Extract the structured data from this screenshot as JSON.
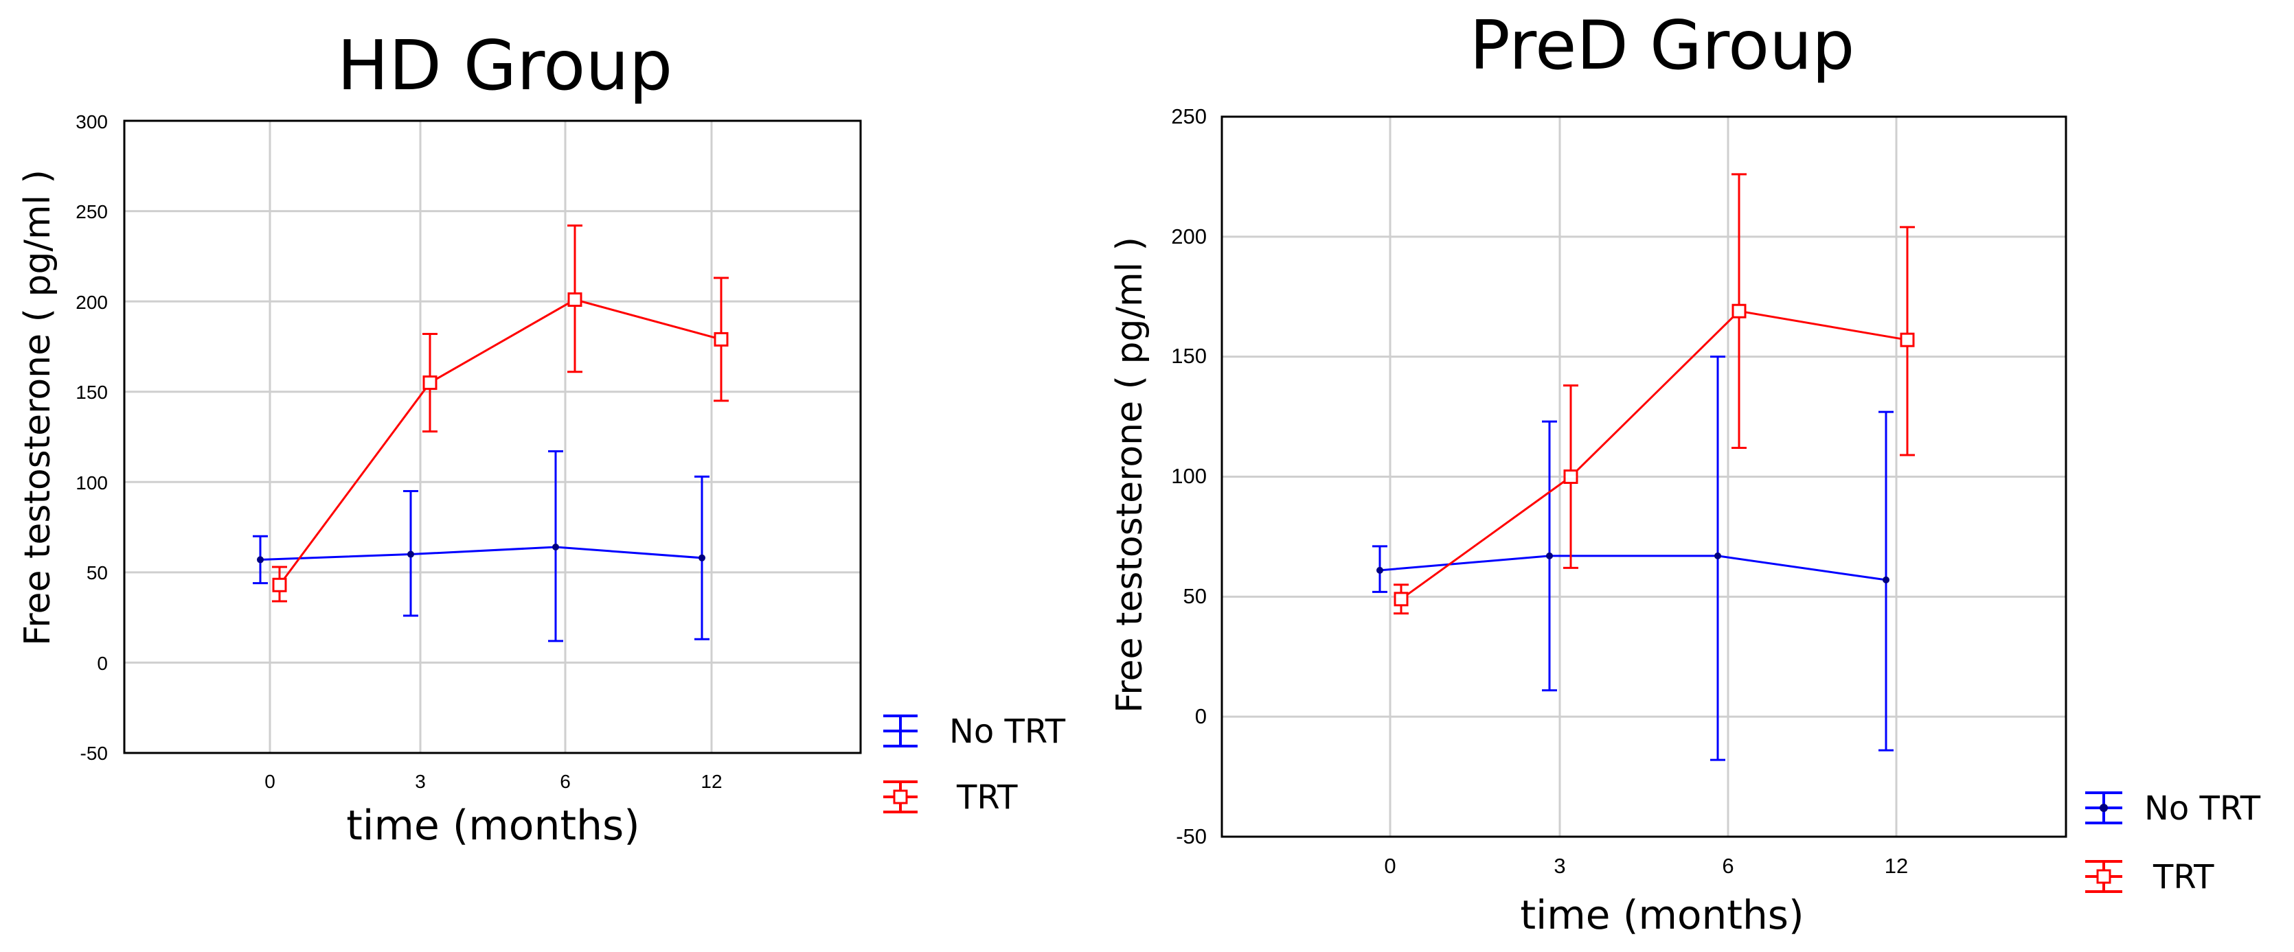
{
  "chart_data": [
    {
      "type": "line",
      "title": "HD Group",
      "xlabel": "time (months)",
      "ylabel": "Free testosterone ( pg/ml )",
      "categories": [
        "0",
        "3",
        "6",
        "12"
      ],
      "ylim": [
        -50,
        300
      ],
      "yticks": [
        "300",
        "250",
        "200",
        "150",
        "100",
        "50",
        "0",
        "-50"
      ],
      "grid": true,
      "error_bars": true,
      "legend": [
        "No TRT",
        "TRT"
      ],
      "series": [
        {
          "name": "No TRT",
          "color": "#0000ff",
          "marker": "dot",
          "values": [
            57,
            60,
            64,
            58
          ],
          "lower": [
            44,
            26,
            12,
            13
          ],
          "upper": [
            70,
            95,
            117,
            103
          ]
        },
        {
          "name": "TRT",
          "color": "#ff0000",
          "marker": "square",
          "values": [
            43,
            155,
            201,
            179
          ],
          "lower": [
            34,
            128,
            161,
            145
          ],
          "upper": [
            53,
            182,
            242,
            213
          ]
        }
      ]
    },
    {
      "type": "line",
      "title": "PreD Group",
      "xlabel": "time (months)",
      "ylabel": "Free testosterone ( pg/ml )",
      "categories": [
        "0",
        "3",
        "6",
        "12"
      ],
      "ylim": [
        -50,
        250
      ],
      "yticks": [
        "250",
        "200",
        "150",
        "100",
        "50",
        "0",
        "-50"
      ],
      "grid": true,
      "error_bars": true,
      "legend": [
        "No TRT",
        "TRT"
      ],
      "series": [
        {
          "name": "No TRT",
          "color": "#0000ff",
          "marker": "dot",
          "values": [
            61,
            67,
            67,
            57
          ],
          "lower": [
            52,
            11,
            -18,
            -14
          ],
          "upper": [
            71,
            123,
            150,
            127
          ]
        },
        {
          "name": "TRT",
          "color": "#ff0000",
          "marker": "square",
          "values": [
            49,
            100,
            169,
            157
          ],
          "lower": [
            43,
            62,
            112,
            109
          ],
          "upper": [
            55,
            138,
            226,
            204
          ]
        }
      ]
    }
  ]
}
